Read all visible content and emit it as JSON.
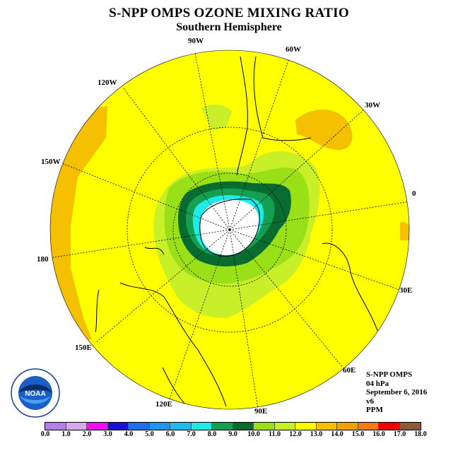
{
  "title": "S-NPP OMPS OZONE MIXING RATIO",
  "subtitle": "Southern Hemisphere",
  "logo_text": "NOAA",
  "logo_ring_text": "NATIONAL OCEANIC AND ATMOSPHERIC ADMINISTRATION · U.S. DEPARTMENT OF COMMERCE",
  "longitude_labels": {
    "w90": "90W",
    "w60": "60W",
    "w30": "30W",
    "e0": "0",
    "w120": "120W",
    "w150": "150W",
    "e180": "180",
    "e30": "30E",
    "e60": "60E",
    "e90": "90E",
    "e120": "120E",
    "e150": "150E"
  },
  "info": {
    "instrument": "S-NPP OMPS",
    "level": "04 hPa",
    "date": "September 6, 2016",
    "version": "v6",
    "units": "PPM"
  },
  "colorbar": {
    "ticks": [
      "0.0",
      "1.0",
      "2.0",
      "3.0",
      "4.0",
      "5.0",
      "6.0",
      "7.0",
      "8.0",
      "9.0",
      "10.0",
      "11.0",
      "12.0",
      "13.0",
      "14.0",
      "15.0",
      "16.0",
      "17.0",
      "18.0"
    ],
    "colors": [
      "#b07fe8",
      "#d9a8f0",
      "#ee10ee",
      "#1a10d8",
      "#1e6fe8",
      "#1e96ee",
      "#1ebcee",
      "#1eeae8",
      "#14a050",
      "#086b30",
      "#9ae016",
      "#c8ef28",
      "#ffff00",
      "#f4c000",
      "#f4a000",
      "#f47a10",
      "#f00000",
      "#8b5a3a"
    ]
  },
  "map_legend": {
    "background_value_ppm": "12.0-13.0",
    "hole_center_value_ppm": "below 0.0 (no data)",
    "ring_values_ppm": [
      "7.0-8.0",
      "8.0-9.0",
      "9.0-10.0",
      "10.0-11.0",
      "11.0-12.0"
    ],
    "high_values_ppm": "13.0-14.0"
  }
}
